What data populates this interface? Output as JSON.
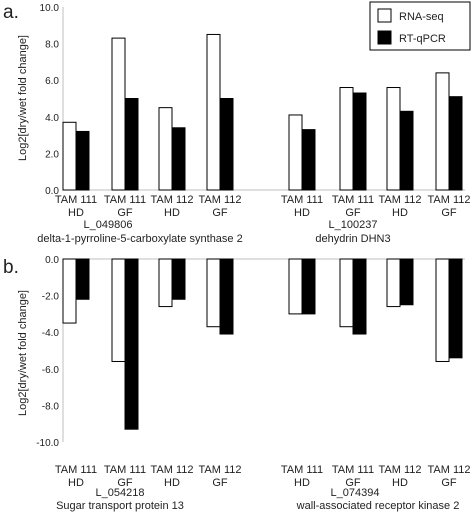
{
  "chart_data": [
    {
      "type": "bar",
      "panel_label": "a.",
      "ylabel": "Log2[dry/wet fold change]",
      "ylim": [
        0,
        10
      ],
      "y_ticks": [
        "0.0",
        "2.0",
        "4.0",
        "6.0",
        "8.0",
        "10.0"
      ],
      "grid": false,
      "legend_position": "top-right",
      "legend": [
        "RNA-seq",
        "RT-qPCR"
      ],
      "groups": [
        {
          "gene_id": "L_049806",
          "gene_name": "delta-1-pyrroline-5-carboxylate synthase 2",
          "categories": [
            [
              "TAM 111",
              "HD"
            ],
            [
              "TAM 111",
              "GF"
            ],
            [
              "TAM 112",
              "HD"
            ],
            [
              "TAM 112",
              "GF"
            ]
          ],
          "series": [
            {
              "name": "RNA-seq",
              "values": [
                3.7,
                8.3,
                4.5,
                8.5
              ]
            },
            {
              "name": "RT-qPCR",
              "values": [
                3.2,
                5.0,
                3.4,
                5.0
              ]
            }
          ]
        },
        {
          "gene_id": "L_100237",
          "gene_name": "dehydrin DHN3",
          "categories": [
            [
              "TAM 111",
              "HD"
            ],
            [
              "TAM 111",
              "GF"
            ],
            [
              "TAM 112",
              "HD"
            ],
            [
              "TAM 112",
              "GF"
            ]
          ],
          "series": [
            {
              "name": "RNA-seq",
              "values": [
                4.1,
                5.6,
                5.6,
                6.4
              ]
            },
            {
              "name": "RT-qPCR",
              "values": [
                3.3,
                5.3,
                4.3,
                5.1
              ]
            }
          ]
        }
      ]
    },
    {
      "type": "bar",
      "panel_label": "b.",
      "ylabel": "Log2[dry/wet fold change]",
      "ylim": [
        -10,
        0
      ],
      "y_ticks": [
        "0.0",
        "-2.0",
        "-4.0",
        "-6.0",
        "-8.0",
        "-10.0"
      ],
      "grid": false,
      "groups": [
        {
          "gene_id": "L_054218",
          "gene_name": "Sugar transport protein 13",
          "categories": [
            [
              "TAM 111",
              "HD"
            ],
            [
              "TAM 111",
              "GF"
            ],
            [
              "TAM 112",
              "HD"
            ],
            [
              "TAM 112",
              "GF"
            ]
          ],
          "series": [
            {
              "name": "RNA-seq",
              "values": [
                -3.5,
                -5.6,
                -2.6,
                -3.7
              ]
            },
            {
              "name": "RT-qPCR",
              "values": [
                -2.2,
                -9.3,
                -2.2,
                -4.1
              ]
            }
          ]
        },
        {
          "gene_id": "L_074394",
          "gene_name": "wall-associated receptor kinase 2",
          "categories": [
            [
              "TAM 111",
              "HD"
            ],
            [
              "TAM 111",
              "GF"
            ],
            [
              "TAM 112",
              "HD"
            ],
            [
              "TAM 112",
              "GF"
            ]
          ],
          "series": [
            {
              "name": "RNA-seq",
              "values": [
                -3.0,
                -3.7,
                -2.6,
                -5.6
              ]
            },
            {
              "name": "RT-qPCR",
              "values": [
                -3.0,
                -4.1,
                -2.5,
                -5.4
              ]
            }
          ]
        }
      ]
    }
  ],
  "colors": {
    "rna_seq_fill": "#ffffff",
    "rt_qpcr_fill": "#000000",
    "bar_stroke": "#000000",
    "axis": "#bfbfbf",
    "text": "#222222"
  }
}
